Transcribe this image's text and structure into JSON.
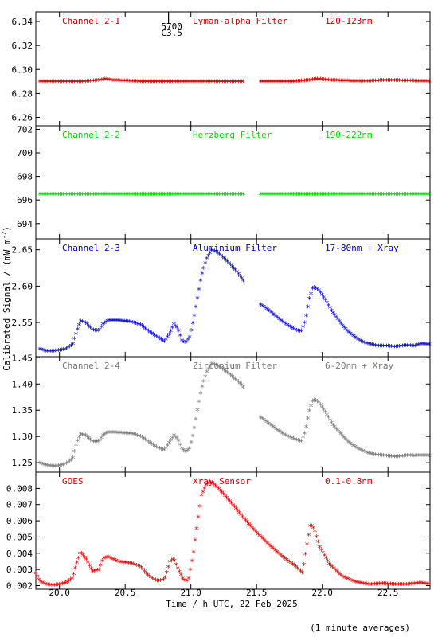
{
  "figure": {
    "ylabel": "Calibrated Signal / (mW m",
    "ylabel_sup": "-2",
    "ylabel_close": ")",
    "xlabel": "Time / h UTC, 22 Feb 2025",
    "footnote": "(1 minute averages)",
    "event_marker": {
      "x": 20.83,
      "label_top": "5700",
      "label_bottom": "C3.5"
    }
  },
  "chart_data": [
    {
      "type": "scatter",
      "channel": "Channel 2-1",
      "filter": "Lyman-alpha Filter",
      "band": "120-123nm",
      "color": "#cc0000",
      "xlim": [
        19.82,
        22.82
      ],
      "ylim": [
        6.253,
        6.348
      ],
      "yticks": [
        6.26,
        6.28,
        6.3,
        6.32,
        6.34
      ],
      "ytick_labels": [
        "6.26",
        "6.28",
        "6.30",
        "6.32",
        "6.34"
      ],
      "gap": [
        21.4,
        21.52
      ],
      "points": [
        [
          19.85,
          6.289
        ],
        [
          20.0,
          6.289
        ],
        [
          20.2,
          6.289
        ],
        [
          20.3,
          6.29
        ],
        [
          20.35,
          6.291
        ],
        [
          20.4,
          6.29
        ],
        [
          20.6,
          6.289
        ],
        [
          21.0,
          6.289
        ],
        [
          21.4,
          6.289
        ],
        [
          21.52,
          6.289
        ],
        [
          21.8,
          6.289
        ],
        [
          21.9,
          6.29
        ],
        [
          21.97,
          6.291
        ],
        [
          22.05,
          6.29
        ],
        [
          22.3,
          6.289
        ],
        [
          22.5,
          6.29
        ],
        [
          22.82,
          6.289
        ]
      ]
    },
    {
      "type": "scatter",
      "channel": "Channel 2-2",
      "filter": "Herzberg Filter",
      "band": "190-222nm",
      "color": "#00dd00",
      "xlim": [
        19.82,
        22.82
      ],
      "ylim": [
        692.7,
        702.3
      ],
      "yticks": [
        694,
        696,
        698,
        700,
        702
      ],
      "ytick_labels": [
        "694",
        "696",
        "698",
        "700",
        "702"
      ],
      "gap": [
        21.4,
        21.52
      ],
      "points": [
        [
          19.85,
          696.4
        ],
        [
          20.5,
          696.4
        ],
        [
          21.0,
          696.4
        ],
        [
          21.4,
          696.4
        ],
        [
          21.52,
          696.4
        ],
        [
          22.2,
          696.4
        ],
        [
          22.82,
          696.4
        ]
      ]
    },
    {
      "type": "scatter",
      "channel": "Channel 2-3",
      "filter": "Aluminium Filter",
      "band": "17-80nm + Xray",
      "color": "#0000cc",
      "xlim": [
        19.82,
        22.82
      ],
      "ylim": [
        2.503,
        2.665
      ],
      "yticks": [
        2.55,
        2.6,
        2.65
      ],
      "ytick_labels": [
        "2.55",
        "2.60",
        "2.65"
      ],
      "gap": [
        21.4,
        21.52
      ],
      "points": [
        [
          19.85,
          2.512
        ],
        [
          19.9,
          2.509
        ],
        [
          19.95,
          2.509
        ],
        [
          20.0,
          2.51
        ],
        [
          20.05,
          2.512
        ],
        [
          20.1,
          2.518
        ],
        [
          20.13,
          2.535
        ],
        [
          20.16,
          2.55
        ],
        [
          20.2,
          2.548
        ],
        [
          20.25,
          2.538
        ],
        [
          20.3,
          2.537
        ],
        [
          20.33,
          2.546
        ],
        [
          20.37,
          2.551
        ],
        [
          20.45,
          2.551
        ],
        [
          20.55,
          2.549
        ],
        [
          20.62,
          2.545
        ],
        [
          20.68,
          2.536
        ],
        [
          20.75,
          2.528
        ],
        [
          20.8,
          2.522
        ],
        [
          20.84,
          2.534
        ],
        [
          20.87,
          2.546
        ],
        [
          20.9,
          2.54
        ],
        [
          20.93,
          2.524
        ],
        [
          20.96,
          2.52
        ],
        [
          20.99,
          2.528
        ],
        [
          21.02,
          2.552
        ],
        [
          21.05,
          2.582
        ],
        [
          21.08,
          2.612
        ],
        [
          21.12,
          2.636
        ],
        [
          21.16,
          2.648
        ],
        [
          21.2,
          2.645
        ],
        [
          21.25,
          2.637
        ],
        [
          21.3,
          2.628
        ],
        [
          21.35,
          2.618
        ],
        [
          21.39,
          2.608
        ],
        [
          21.53,
          2.573
        ],
        [
          21.58,
          2.567
        ],
        [
          21.62,
          2.561
        ],
        [
          21.66,
          2.555
        ],
        [
          21.7,
          2.549
        ],
        [
          21.75,
          2.543
        ],
        [
          21.8,
          2.538
        ],
        [
          21.84,
          2.536
        ],
        [
          21.87,
          2.55
        ],
        [
          21.9,
          2.58
        ],
        [
          21.93,
          2.597
        ],
        [
          21.97,
          2.594
        ],
        [
          22.02,
          2.58
        ],
        [
          22.08,
          2.562
        ],
        [
          22.15,
          2.545
        ],
        [
          22.2,
          2.535
        ],
        [
          22.25,
          2.528
        ],
        [
          22.3,
          2.522
        ],
        [
          22.35,
          2.519
        ],
        [
          22.4,
          2.517
        ],
        [
          22.45,
          2.516
        ],
        [
          22.5,
          2.516
        ],
        [
          22.55,
          2.515
        ],
        [
          22.6,
          2.516
        ],
        [
          22.65,
          2.517
        ],
        [
          22.7,
          2.516
        ],
        [
          22.75,
          2.519
        ],
        [
          22.82,
          2.518
        ]
      ]
    },
    {
      "type": "scatter",
      "channel": "Channel 2-4",
      "filter": "Zirconium Filter",
      "band": "6-20nm + Xray",
      "color": "#777777",
      "xlim": [
        19.82,
        22.82
      ],
      "ylim": [
        1.232,
        1.452
      ],
      "yticks": [
        1.25,
        1.3,
        1.35,
        1.4,
        1.45
      ],
      "ytick_labels": [
        "1.25",
        "1.30",
        "1.35",
        "1.40",
        "1.45"
      ],
      "gap": [
        21.4,
        21.52
      ],
      "points": [
        [
          19.85,
          1.247
        ],
        [
          19.9,
          1.243
        ],
        [
          19.95,
          1.241
        ],
        [
          20.0,
          1.242
        ],
        [
          20.05,
          1.246
        ],
        [
          20.1,
          1.255
        ],
        [
          20.13,
          1.285
        ],
        [
          20.16,
          1.302
        ],
        [
          20.2,
          1.3
        ],
        [
          20.25,
          1.288
        ],
        [
          20.3,
          1.288
        ],
        [
          20.33,
          1.3
        ],
        [
          20.37,
          1.306
        ],
        [
          20.45,
          1.305
        ],
        [
          20.55,
          1.303
        ],
        [
          20.62,
          1.298
        ],
        [
          20.68,
          1.287
        ],
        [
          20.75,
          1.276
        ],
        [
          20.8,
          1.272
        ],
        [
          20.84,
          1.288
        ],
        [
          20.87,
          1.3
        ],
        [
          20.9,
          1.293
        ],
        [
          20.93,
          1.275
        ],
        [
          20.96,
          1.268
        ],
        [
          20.99,
          1.275
        ],
        [
          21.02,
          1.305
        ],
        [
          21.05,
          1.348
        ],
        [
          21.08,
          1.388
        ],
        [
          21.12,
          1.42
        ],
        [
          21.16,
          1.437
        ],
        [
          21.2,
          1.433
        ],
        [
          21.25,
          1.425
        ],
        [
          21.3,
          1.415
        ],
        [
          21.35,
          1.404
        ],
        [
          21.39,
          1.395
        ],
        [
          21.53,
          1.334
        ],
        [
          21.58,
          1.325
        ],
        [
          21.62,
          1.317
        ],
        [
          21.66,
          1.31
        ],
        [
          21.7,
          1.303
        ],
        [
          21.75,
          1.297
        ],
        [
          21.8,
          1.292
        ],
        [
          21.84,
          1.288
        ],
        [
          21.87,
          1.306
        ],
        [
          21.9,
          1.345
        ],
        [
          21.93,
          1.368
        ],
        [
          21.97,
          1.364
        ],
        [
          22.02,
          1.345
        ],
        [
          22.08,
          1.32
        ],
        [
          22.15,
          1.3
        ],
        [
          22.2,
          1.287
        ],
        [
          22.25,
          1.278
        ],
        [
          22.3,
          1.271
        ],
        [
          22.35,
          1.266
        ],
        [
          22.4,
          1.263
        ],
        [
          22.45,
          1.262
        ],
        [
          22.5,
          1.261
        ],
        [
          22.55,
          1.259
        ],
        [
          22.6,
          1.26
        ],
        [
          22.65,
          1.262
        ],
        [
          22.7,
          1.261
        ],
        [
          22.75,
          1.262
        ],
        [
          22.82,
          1.261
        ]
      ]
    },
    {
      "type": "scatter",
      "channel": "GOES",
      "filter": "Xray Sensor",
      "band": "0.1-0.8nm",
      "color": "#dd0000",
      "xlim": [
        19.82,
        22.82
      ],
      "ylim": [
        0.00178,
        0.009
      ],
      "yticks": [
        0.002,
        0.003,
        0.004,
        0.005,
        0.006,
        0.007,
        0.008
      ],
      "ytick_labels": [
        "0.002",
        "0.003",
        "0.004",
        "0.005",
        "0.006",
        "0.007",
        "0.008"
      ],
      "gap": null,
      "points": [
        [
          19.82,
          0.0027
        ],
        [
          19.85,
          0.0022
        ],
        [
          19.9,
          0.002
        ],
        [
          19.95,
          0.00195
        ],
        [
          20.0,
          0.002
        ],
        [
          20.05,
          0.0021
        ],
        [
          20.1,
          0.0024
        ],
        [
          20.13,
          0.0033
        ],
        [
          20.16,
          0.004
        ],
        [
          20.2,
          0.0036
        ],
        [
          20.25,
          0.0028
        ],
        [
          20.3,
          0.0029
        ],
        [
          20.33,
          0.0036
        ],
        [
          20.37,
          0.0037
        ],
        [
          20.45,
          0.0034
        ],
        [
          20.55,
          0.0033
        ],
        [
          20.62,
          0.0031
        ],
        [
          20.68,
          0.0025
        ],
        [
          20.75,
          0.0022
        ],
        [
          20.8,
          0.0023
        ],
        [
          20.84,
          0.0034
        ],
        [
          20.87,
          0.0036
        ],
        [
          20.9,
          0.003
        ],
        [
          20.94,
          0.0023
        ],
        [
          20.98,
          0.0022
        ],
        [
          21.02,
          0.004
        ],
        [
          21.05,
          0.0058
        ],
        [
          21.08,
          0.0075
        ],
        [
          21.12,
          0.0082
        ],
        [
          21.16,
          0.0083
        ],
        [
          21.2,
          0.008
        ],
        [
          21.3,
          0.0071
        ],
        [
          21.4,
          0.0061
        ],
        [
          21.5,
          0.0052
        ],
        [
          21.6,
          0.0044
        ],
        [
          21.7,
          0.0037
        ],
        [
          21.8,
          0.0031
        ],
        [
          21.85,
          0.0027
        ],
        [
          21.88,
          0.0043
        ],
        [
          21.91,
          0.0057
        ],
        [
          21.94,
          0.0054
        ],
        [
          21.98,
          0.0043
        ],
        [
          22.05,
          0.0033
        ],
        [
          22.15,
          0.0025
        ],
        [
          22.25,
          0.00215
        ],
        [
          22.35,
          0.002
        ],
        [
          22.45,
          0.00205
        ],
        [
          22.55,
          0.002
        ],
        [
          22.65,
          0.002
        ],
        [
          22.75,
          0.0021
        ],
        [
          22.82,
          0.002
        ]
      ]
    }
  ],
  "x_axis": {
    "ticks": [
      20.0,
      20.5,
      21.0,
      21.5,
      22.0,
      22.5
    ],
    "tick_labels": [
      "20.0",
      "20.5",
      "21.0",
      "21.5",
      "22.0",
      "22.5"
    ]
  }
}
